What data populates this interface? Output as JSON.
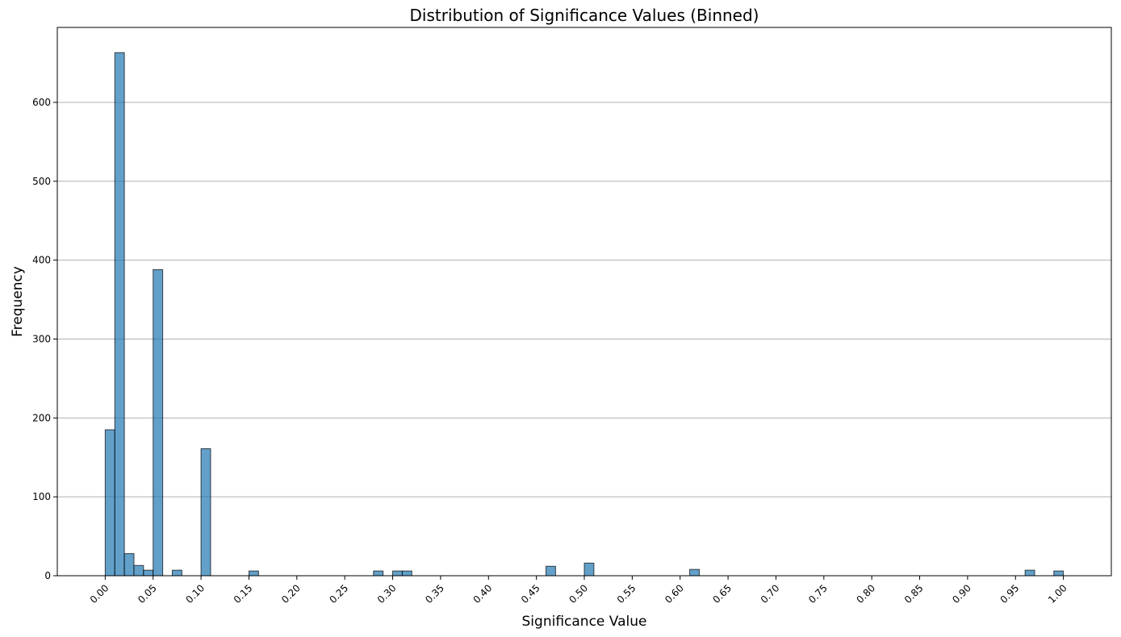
{
  "chart_data": {
    "type": "bar",
    "title": "Distribution of Significance Values (Binned)",
    "xlabel": "Significance Value",
    "ylabel": "Frequency",
    "xlim": [
      -0.05,
      1.05
    ],
    "ylim": [
      0,
      695
    ],
    "grid": "y",
    "bin_width": 0.01,
    "bar_color": "#1f77b4",
    "bar_edge_color": "#000000",
    "x_ticks": [
      "0.00",
      "0.05",
      "0.10",
      "0.15",
      "0.20",
      "0.25",
      "0.30",
      "0.35",
      "0.40",
      "0.45",
      "0.50",
      "0.55",
      "0.60",
      "0.65",
      "0.70",
      "0.75",
      "0.80",
      "0.85",
      "0.90",
      "0.95",
      "1.00"
    ],
    "x_tick_values": [
      0.0,
      0.05,
      0.1,
      0.15,
      0.2,
      0.25,
      0.3,
      0.35,
      0.4,
      0.45,
      0.5,
      0.55,
      0.6,
      0.65,
      0.7,
      0.75,
      0.8,
      0.85,
      0.9,
      0.95,
      1.0
    ],
    "y_ticks": [
      0,
      100,
      200,
      300,
      400,
      500,
      600
    ],
    "bins": [
      {
        "x0": 0.0,
        "x1": 0.01,
        "value": 185
      },
      {
        "x0": 0.01,
        "x1": 0.02,
        "value": 663
      },
      {
        "x0": 0.02,
        "x1": 0.03,
        "value": 28
      },
      {
        "x0": 0.03,
        "x1": 0.04,
        "value": 13
      },
      {
        "x0": 0.04,
        "x1": 0.05,
        "value": 7
      },
      {
        "x0": 0.05,
        "x1": 0.06,
        "value": 388
      },
      {
        "x0": 0.07,
        "x1": 0.08,
        "value": 7
      },
      {
        "x0": 0.1,
        "x1": 0.11,
        "value": 161
      },
      {
        "x0": 0.15,
        "x1": 0.16,
        "value": 6
      },
      {
        "x0": 0.28,
        "x1": 0.29,
        "value": 6
      },
      {
        "x0": 0.3,
        "x1": 0.31,
        "value": 6
      },
      {
        "x0": 0.31,
        "x1": 0.32,
        "value": 6
      },
      {
        "x0": 0.46,
        "x1": 0.47,
        "value": 12
      },
      {
        "x0": 0.5,
        "x1": 0.51,
        "value": 16
      },
      {
        "x0": 0.61,
        "x1": 0.62,
        "value": 8
      },
      {
        "x0": 0.96,
        "x1": 0.97,
        "value": 7
      },
      {
        "x0": 0.99,
        "x1": 1.0,
        "value": 6
      }
    ]
  }
}
